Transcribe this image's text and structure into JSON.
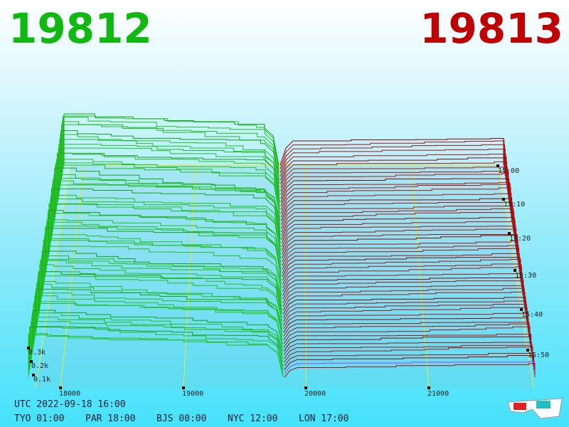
{
  "header": {
    "bid": "19812",
    "ask": "19813"
  },
  "price_axis": [
    "18000",
    "19000",
    "20000",
    "21000"
  ],
  "depth_axis": [
    "0.3k",
    "0.2k",
    "0.1k"
  ],
  "time_axis": [
    "15:00",
    "15:10",
    "15:20",
    "15:30",
    "15:40",
    "15:50"
  ],
  "footer": {
    "utc": "UTC 2022-09-18 16:00",
    "zones": [
      "TYO 01:00",
      "PAR 18:00",
      "BJS 00:00",
      "NYC 12:00",
      "LON 17:00"
    ]
  }
}
